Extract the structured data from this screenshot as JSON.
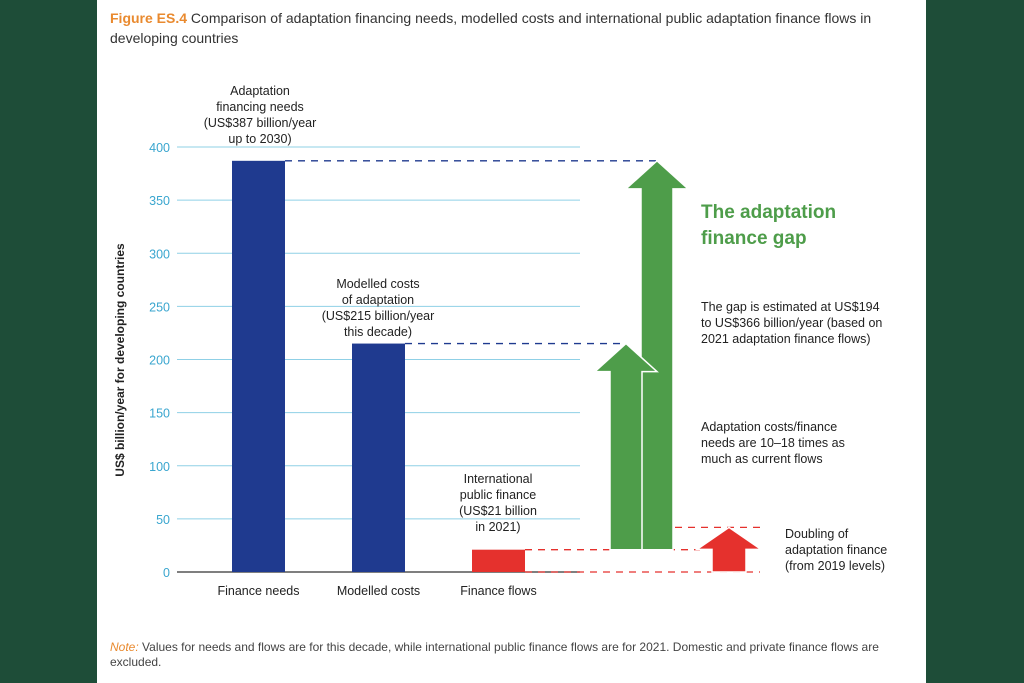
{
  "figure": {
    "label": "Figure ES.4",
    "title": "Comparison of adaptation financing needs, modelled costs and international public adaptation finance flows in developing countries",
    "note_label": "Note:",
    "note": "Values for needs and flows are for this decade, while international public finance flows are for 2021. Domestic and private finance flows are excluded."
  },
  "chart_data": {
    "type": "bar",
    "categories": [
      "Finance needs",
      "Modelled costs",
      "Finance flows"
    ],
    "values": [
      387,
      215,
      21
    ],
    "ylabel": "US$ billion/year for developing countries",
    "ylim": [
      0,
      400
    ],
    "yticks": [
      0,
      50,
      100,
      150,
      200,
      250,
      300,
      350,
      400
    ],
    "grid": true,
    "bar_labels": [
      [
        "Adaptation",
        "financing needs",
        "(US$387 billion/year",
        "up to 2030)"
      ],
      [
        "Modelled costs",
        "of adaptation",
        "(US$215 billion/year",
        "this decade)"
      ],
      [
        "International",
        "public finance",
        "(US$21 billion",
        "in 2021)"
      ]
    ],
    "gap_arrows": [
      {
        "from": 21,
        "to": 215
      },
      {
        "from": 21,
        "to": 387
      }
    ],
    "doubling_arrow": {
      "from": 0,
      "to": 42
    },
    "annotations": {
      "gap_title": [
        "The adaptation",
        "finance gap"
      ],
      "gap_estimate": [
        "The gap is estimated at US$194",
        "to US$366 billion/year (based on",
        "2021 adaptation finance flows)"
      ],
      "ratio": [
        "Adaptation costs/finance",
        "needs are 10–18 times as",
        "much as current flows"
      ],
      "doubling": [
        "Doubling of",
        "adaptation finance",
        "(from 2019 levels)"
      ]
    },
    "colors": {
      "bars": "#1f3a8f",
      "flows": "#e5312d",
      "gap": "#4e9d4a",
      "grid": "#8fd0e6",
      "ticks": "#3aa6cf",
      "border": "#1e4d38"
    }
  }
}
